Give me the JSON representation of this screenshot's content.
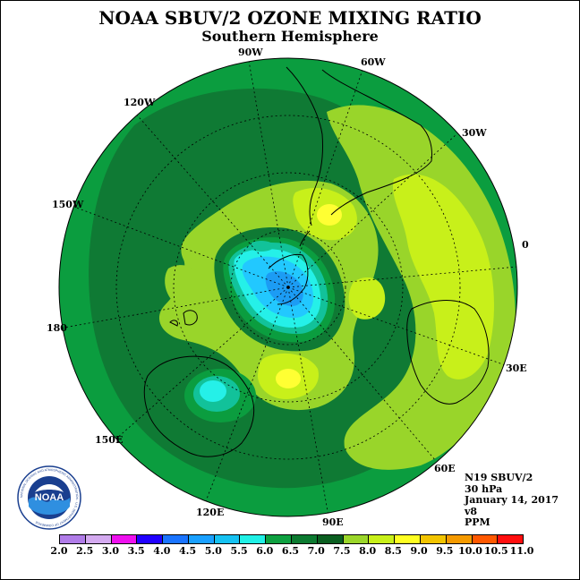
{
  "title": "NOAA SBUV/2 OZONE MIXING RATIO",
  "subtitle": "Southern Hemisphere",
  "longitude_labels": [
    "90W",
    "60W",
    "30W",
    "0",
    "30E",
    "60E",
    "90E",
    "120E",
    "150E",
    "180",
    "150W",
    "120W"
  ],
  "info": {
    "satellite": "N19 SBUV/2",
    "level": "30 hPa",
    "date": "January 14, 2017",
    "version": "v8",
    "units": "PPM"
  },
  "logo": {
    "text": "NOAA",
    "ring_text": "NATIONAL OCEANIC AND ATMOSPHERIC ADMINISTRATION · U.S. DEPARTMENT OF COMMERCE"
  },
  "colorbar": {
    "ticks": [
      "2.0",
      "2.5",
      "3.0",
      "3.5",
      "4.0",
      "4.5",
      "5.0",
      "5.5",
      "6.0",
      "6.5",
      "7.0",
      "7.5",
      "8.0",
      "8.5",
      "9.0",
      "9.5",
      "10.0",
      "10.5",
      "11.0"
    ],
    "colors": [
      "#b58ce8",
      "#d8b4f0",
      "#ee11ee",
      "#2200ff",
      "#1e78ff",
      "#1c9fff",
      "#15c0f0",
      "#18e0e8",
      "#1ef0c0",
      "#0d9a44",
      "#047a2c",
      "#0a5e22",
      "#9ad80a",
      "#ccf00a",
      "#ffff00",
      "#f4c800",
      "#f59800",
      "#ff5a00",
      "#ff1010",
      "#b0001a",
      "#8a5a3c"
    ]
  },
  "palette": {
    "c6_5": "#0b9d3f",
    "c7_0": "#0f7a34",
    "c7_5": "#99d52a",
    "c8_0": "#c8f01a",
    "c8_5": "#ffff33",
    "c6_0": "#12c29a",
    "c5_5": "#25f0e8",
    "c5_0": "#22c8ff",
    "c4_5": "#1c9cf4",
    "land": "#000000"
  }
}
